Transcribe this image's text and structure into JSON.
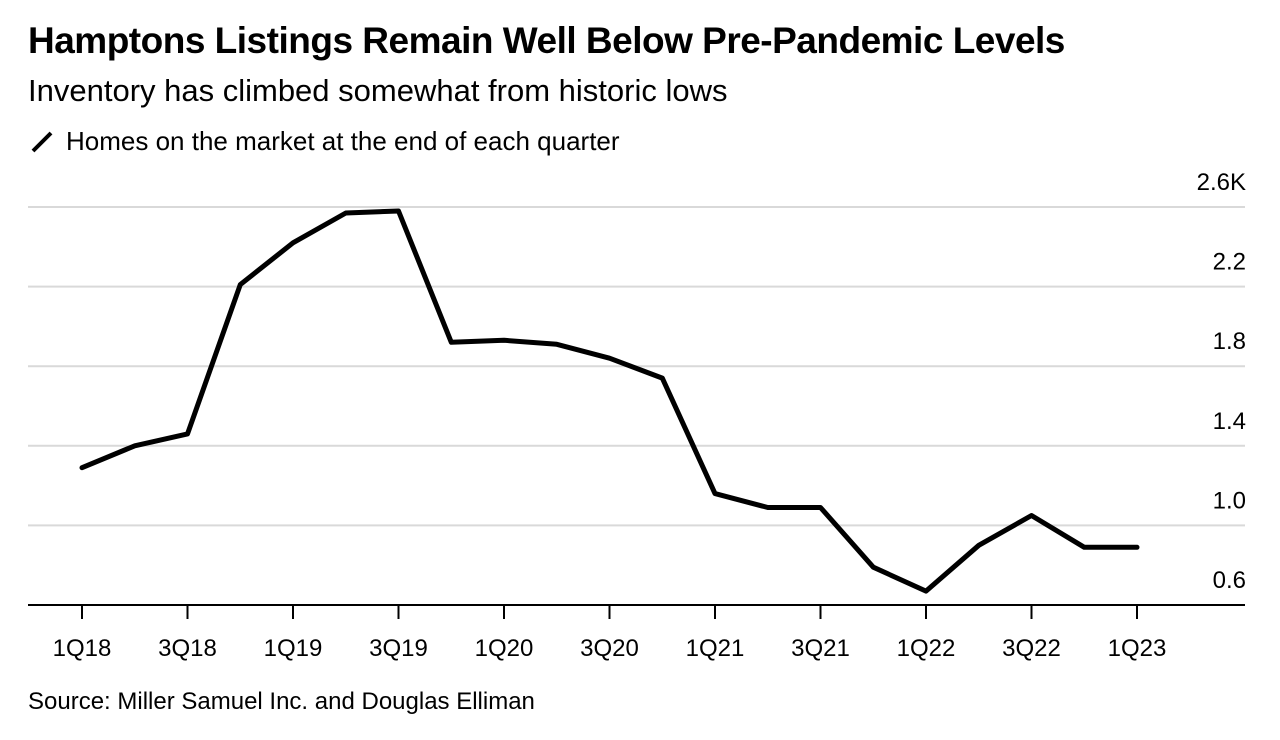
{
  "title": "Hamptons Listings Remain Well Below Pre-Pandemic Levels",
  "subtitle": "Inventory has climbed somewhat from historic lows",
  "legend": {
    "label": "Homes on the market at the end of each quarter",
    "color": "#000000"
  },
  "source": "Source: Miller Samuel Inc. and Douglas Elliman",
  "colors": {
    "line": "#000000",
    "grid": "#d9d9d9",
    "axis": "#000000"
  },
  "chart_data": {
    "type": "line",
    "title": "Hamptons Listings Remain Well Below Pre-Pandemic Levels",
    "subtitle": "Inventory has climbed somewhat from historic lows",
    "xlabel": "",
    "ylabel": "",
    "x": [
      "1Q18",
      "2Q18",
      "3Q18",
      "4Q18",
      "1Q19",
      "2Q19",
      "3Q19",
      "4Q19",
      "1Q20",
      "2Q20",
      "3Q20",
      "4Q20",
      "1Q21",
      "2Q21",
      "3Q21",
      "4Q21",
      "1Q22",
      "2Q22",
      "3Q22",
      "4Q22",
      "1Q23"
    ],
    "series": [
      {
        "name": "Homes on the market at the end of each quarter",
        "values": [
          1.29,
          1.4,
          1.46,
          2.21,
          2.42,
          2.57,
          2.58,
          1.92,
          1.93,
          1.91,
          1.84,
          1.74,
          1.16,
          1.09,
          1.09,
          0.79,
          0.67,
          0.9,
          1.05,
          0.89,
          0.89
        ]
      }
    ],
    "xticks": [
      "1Q18",
      "3Q18",
      "1Q19",
      "3Q19",
      "1Q20",
      "3Q20",
      "1Q21",
      "3Q21",
      "1Q22",
      "3Q22",
      "1Q23"
    ],
    "yticks": [
      {
        "value": 0.6,
        "label": "0.6"
      },
      {
        "value": 1.0,
        "label": "1.0"
      },
      {
        "value": 1.4,
        "label": "1.4"
      },
      {
        "value": 1.8,
        "label": "1.8"
      },
      {
        "value": 2.2,
        "label": "2.2"
      },
      {
        "value": 2.6,
        "label": "2.6K"
      }
    ],
    "ylim": [
      0.6,
      2.6
    ],
    "grid": true,
    "y_axis_side": "right"
  }
}
